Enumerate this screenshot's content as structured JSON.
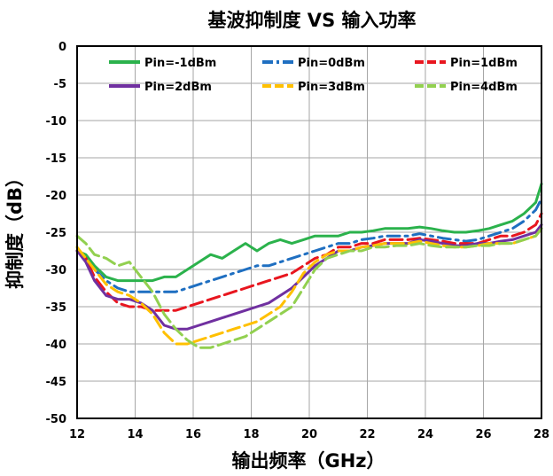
{
  "chart_data": {
    "type": "line",
    "title": "基波抑制度 VS 输入功率",
    "xlabel": "输出频率（GHz）",
    "ylabel": "抑制度（dB）",
    "xlim": [
      12,
      28
    ],
    "ylim": [
      -50,
      0
    ],
    "xticks": [
      12,
      14,
      16,
      18,
      20,
      22,
      24,
      26,
      28
    ],
    "yticks": [
      0,
      -5,
      -10,
      -15,
      -20,
      -25,
      -30,
      -35,
      -40,
      -45,
      -50
    ],
    "grid": true,
    "legend_position": "top, inside plot, 3 columns",
    "series": [
      {
        "name": "Pin=-1dBm",
        "color": "#2bb24c",
        "dash": "solid",
        "x": [
          12.0,
          12.3,
          12.6,
          13.0,
          13.4,
          13.8,
          14.2,
          14.6,
          15.0,
          15.4,
          15.8,
          16.2,
          16.6,
          17.0,
          17.4,
          17.8,
          18.2,
          18.6,
          19.0,
          19.4,
          19.8,
          20.2,
          20.6,
          21.0,
          21.4,
          21.8,
          22.2,
          22.6,
          23.0,
          23.4,
          23.8,
          24.2,
          24.6,
          25.0,
          25.4,
          25.8,
          26.2,
          26.6,
          27.0,
          27.4,
          27.8,
          28.0
        ],
        "y": [
          -27.5,
          -28.0,
          -29.5,
          -31.0,
          -31.5,
          -31.5,
          -31.5,
          -31.5,
          -31.0,
          -31.0,
          -30.0,
          -29.0,
          -28.0,
          -28.5,
          -27.5,
          -26.5,
          -27.5,
          -26.5,
          -26.0,
          -26.5,
          -26.0,
          -25.5,
          -25.5,
          -25.5,
          -25.0,
          -25.0,
          -24.8,
          -24.5,
          -24.5,
          -24.5,
          -24.3,
          -24.5,
          -24.8,
          -25.0,
          -25.0,
          -24.8,
          -24.5,
          -24.0,
          -23.5,
          -22.5,
          -21.0,
          -18.5
        ]
      },
      {
        "name": "Pin=0dBm",
        "color": "#1f6fc1",
        "dash": "dashdot",
        "x": [
          12.0,
          12.3,
          12.6,
          13.0,
          13.4,
          13.8,
          14.2,
          14.6,
          15.0,
          15.4,
          15.8,
          16.2,
          16.6,
          17.0,
          17.4,
          17.8,
          18.2,
          18.6,
          19.0,
          19.4,
          19.8,
          20.2,
          20.6,
          21.0,
          21.4,
          21.8,
          22.2,
          22.6,
          23.0,
          23.4,
          23.8,
          24.2,
          24.6,
          25.0,
          25.4,
          25.8,
          26.2,
          26.6,
          27.0,
          27.4,
          27.8,
          28.0
        ],
        "y": [
          -27.5,
          -28.5,
          -30.0,
          -31.5,
          -32.5,
          -33.0,
          -33.0,
          -33.0,
          -33.0,
          -33.0,
          -32.5,
          -32.0,
          -31.5,
          -31.0,
          -30.5,
          -30.0,
          -29.5,
          -29.5,
          -29.0,
          -28.5,
          -28.0,
          -27.5,
          -27.0,
          -26.5,
          -26.5,
          -26.0,
          -25.8,
          -25.5,
          -25.5,
          -25.5,
          -25.2,
          -25.5,
          -25.8,
          -26.0,
          -26.2,
          -26.0,
          -25.5,
          -25.0,
          -24.5,
          -23.5,
          -22.0,
          -20.5
        ]
      },
      {
        "name": "Pin=1dBm",
        "color": "#e8161f",
        "dash": "dashed",
        "x": [
          12.0,
          12.3,
          12.6,
          13.0,
          13.4,
          13.8,
          14.2,
          14.6,
          15.0,
          15.4,
          15.8,
          16.2,
          16.6,
          17.0,
          17.4,
          17.8,
          18.2,
          18.6,
          19.0,
          19.4,
          19.8,
          20.2,
          20.6,
          21.0,
          21.4,
          21.8,
          22.2,
          22.6,
          23.0,
          23.4,
          23.8,
          24.2,
          24.6,
          25.0,
          25.4,
          25.8,
          26.2,
          26.6,
          27.0,
          27.4,
          27.8,
          28.0
        ],
        "y": [
          -27.5,
          -28.5,
          -31.0,
          -33.0,
          -34.5,
          -35.0,
          -35.0,
          -35.5,
          -35.5,
          -35.5,
          -35.0,
          -34.5,
          -34.0,
          -33.5,
          -33.0,
          -32.5,
          -32.0,
          -31.5,
          -31.0,
          -30.5,
          -29.5,
          -28.5,
          -28.0,
          -27.0,
          -27.0,
          -26.5,
          -26.5,
          -26.0,
          -26.0,
          -26.0,
          -25.8,
          -26.0,
          -26.2,
          -26.5,
          -26.5,
          -26.5,
          -26.0,
          -25.5,
          -25.5,
          -25.0,
          -24.0,
          -22.5
        ]
      },
      {
        "name": "Pin=2dBm",
        "color": "#7030a0",
        "dash": "solid",
        "x": [
          12.0,
          12.3,
          12.6,
          13.0,
          13.4,
          13.8,
          14.2,
          14.6,
          15.0,
          15.4,
          15.8,
          16.2,
          16.6,
          17.0,
          17.4,
          17.8,
          18.2,
          18.6,
          19.0,
          19.4,
          19.8,
          20.2,
          20.6,
          21.0,
          21.4,
          21.8,
          22.2,
          22.6,
          23.0,
          23.4,
          23.8,
          24.2,
          24.6,
          25.0,
          25.4,
          25.8,
          26.2,
          26.6,
          27.0,
          27.4,
          27.8,
          28.0
        ],
        "y": [
          -27.5,
          -29.0,
          -31.5,
          -33.5,
          -34.0,
          -34.0,
          -34.5,
          -35.5,
          -37.5,
          -38.0,
          -38.0,
          -37.5,
          -37.0,
          -36.5,
          -36.0,
          -35.5,
          -35.0,
          -34.5,
          -33.5,
          -32.5,
          -31.0,
          -29.5,
          -28.5,
          -27.5,
          -27.5,
          -27.0,
          -26.8,
          -26.5,
          -26.5,
          -26.5,
          -26.0,
          -26.2,
          -26.5,
          -26.8,
          -26.8,
          -26.5,
          -26.5,
          -26.2,
          -26.0,
          -25.5,
          -25.0,
          -24.0
        ]
      },
      {
        "name": "Pin=3dBm",
        "color": "#ffc000",
        "dash": "dashed",
        "x": [
          12.0,
          12.3,
          12.6,
          13.0,
          13.4,
          13.8,
          14.2,
          14.6,
          15.0,
          15.4,
          15.8,
          16.2,
          16.6,
          17.0,
          17.4,
          17.8,
          18.2,
          18.6,
          19.0,
          19.4,
          19.8,
          20.2,
          20.6,
          21.0,
          21.4,
          21.8,
          22.2,
          22.6,
          23.0,
          23.4,
          23.8,
          24.2,
          24.6,
          25.0,
          25.4,
          25.8,
          26.2,
          26.6,
          27.0,
          27.4,
          27.8,
          28.0
        ],
        "y": [
          -27.0,
          -28.5,
          -30.0,
          -32.0,
          -33.0,
          -33.5,
          -34.5,
          -36.0,
          -38.5,
          -40.0,
          -40.0,
          -39.5,
          -39.0,
          -38.5,
          -38.0,
          -37.5,
          -37.0,
          -36.0,
          -35.0,
          -33.0,
          -30.5,
          -29.0,
          -28.0,
          -27.5,
          -27.5,
          -27.0,
          -26.8,
          -26.5,
          -26.5,
          -26.5,
          -26.2,
          -26.5,
          -26.8,
          -27.0,
          -27.0,
          -26.8,
          -26.5,
          -26.5,
          -26.5,
          -26.0,
          -25.5,
          -24.5
        ]
      },
      {
        "name": "Pin=4dBm",
        "color": "#92d050",
        "dash": "dashed",
        "x": [
          12.0,
          12.3,
          12.6,
          13.0,
          13.4,
          13.8,
          14.2,
          14.6,
          15.0,
          15.4,
          15.8,
          16.2,
          16.6,
          17.0,
          17.4,
          17.8,
          18.2,
          18.6,
          19.0,
          19.4,
          19.8,
          20.2,
          20.6,
          21.0,
          21.4,
          21.8,
          22.2,
          22.6,
          23.0,
          23.4,
          23.8,
          24.2,
          24.6,
          25.0,
          25.4,
          25.8,
          26.2,
          26.6,
          27.0,
          27.4,
          27.8,
          28.0
        ],
        "y": [
          -25.5,
          -26.5,
          -28.0,
          -28.5,
          -29.5,
          -29.0,
          -31.0,
          -33.0,
          -36.0,
          -38.0,
          -39.5,
          -40.5,
          -40.5,
          -40.0,
          -39.5,
          -39.0,
          -38.0,
          -37.0,
          -36.0,
          -35.0,
          -32.5,
          -30.0,
          -28.5,
          -28.0,
          -27.5,
          -27.5,
          -27.0,
          -27.0,
          -26.8,
          -26.8,
          -26.5,
          -26.8,
          -27.0,
          -27.0,
          -27.0,
          -26.8,
          -26.8,
          -26.5,
          -26.5,
          -26.0,
          -25.5,
          -24.5
        ]
      }
    ]
  }
}
